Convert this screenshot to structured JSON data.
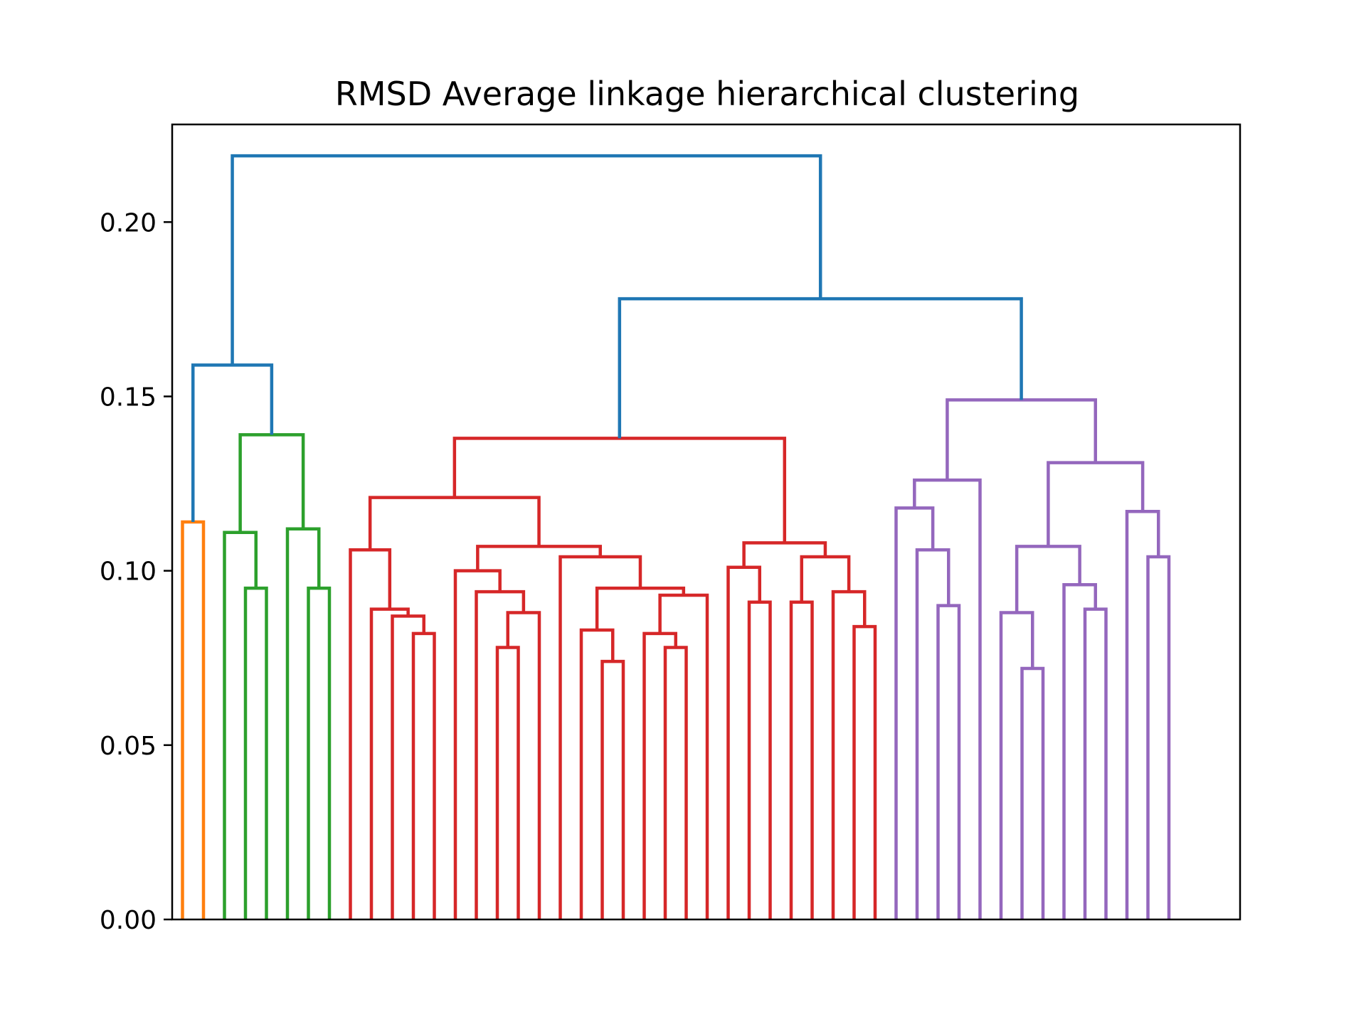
{
  "chart_data": {
    "type": "dendrogram",
    "title": "RMSD Average linkage hierarchical clustering",
    "xlabel": "",
    "ylabel": "",
    "ylim": [
      0.0,
      0.228
    ],
    "yticks": [
      0.0,
      0.05,
      0.1,
      0.15,
      0.2
    ],
    "ytick_labels": [
      "0.00",
      "0.05",
      "0.10",
      "0.15",
      "0.20"
    ],
    "x_tick_labels": "none",
    "grid": false,
    "leaf_count": 50,
    "colors": {
      "orange": "#ff7f0e",
      "green": "#2ca02c",
      "red": "#d62728",
      "purple": "#9467bd",
      "above_threshold": "#1f77b4"
    },
    "merges": [
      {
        "id": "o1",
        "left": "L0",
        "right": "L1",
        "height": 0.114,
        "color": "orange"
      },
      {
        "id": "g1",
        "left": "L3",
        "right": "L4",
        "height": 0.095,
        "color": "green"
      },
      {
        "id": "g2",
        "left": "L2",
        "right": "g1",
        "height": 0.111,
        "color": "green"
      },
      {
        "id": "g3",
        "left": "L6",
        "right": "L7",
        "height": 0.095,
        "color": "green"
      },
      {
        "id": "g4",
        "left": "L5",
        "right": "g3",
        "height": 0.112,
        "color": "green"
      },
      {
        "id": "g5",
        "left": "g2",
        "right": "g4",
        "height": 0.139,
        "color": "green"
      },
      {
        "id": "r1",
        "left": "L11",
        "right": "L12",
        "height": 0.082,
        "color": "red"
      },
      {
        "id": "r2",
        "left": "L10",
        "right": "r1",
        "height": 0.087,
        "color": "red"
      },
      {
        "id": "r3",
        "left": "L9",
        "right": "r2",
        "height": 0.089,
        "color": "red"
      },
      {
        "id": "r4",
        "left": "L8",
        "right": "r3",
        "height": 0.106,
        "color": "red"
      },
      {
        "id": "r5",
        "left": "L15",
        "right": "L16",
        "height": 0.078,
        "color": "red"
      },
      {
        "id": "r6",
        "left": "r5",
        "right": "L17",
        "height": 0.088,
        "color": "red"
      },
      {
        "id": "r7",
        "left": "L14",
        "right": "r6",
        "height": 0.094,
        "color": "red"
      },
      {
        "id": "r8",
        "left": "L13",
        "right": "r7",
        "height": 0.1,
        "color": "red"
      },
      {
        "id": "r9",
        "left": "L20",
        "right": "L21",
        "height": 0.074,
        "color": "red"
      },
      {
        "id": "r10",
        "left": "L19",
        "right": "r9",
        "height": 0.083,
        "color": "red"
      },
      {
        "id": "r11",
        "left": "L23",
        "right": "L24",
        "height": 0.078,
        "color": "red"
      },
      {
        "id": "r12",
        "left": "L22",
        "right": "r11",
        "height": 0.082,
        "color": "red"
      },
      {
        "id": "r13",
        "left": "r12",
        "right": "L25",
        "height": 0.093,
        "color": "red"
      },
      {
        "id": "r14",
        "left": "r10",
        "right": "r13",
        "height": 0.095,
        "color": "red"
      },
      {
        "id": "r15",
        "left": "L18",
        "right": "r14",
        "height": 0.104,
        "color": "red"
      },
      {
        "id": "r16",
        "left": "r8",
        "right": "r15",
        "height": 0.107,
        "color": "red"
      },
      {
        "id": "r17",
        "left": "r4",
        "right": "r16",
        "height": 0.121,
        "color": "red"
      },
      {
        "id": "r18",
        "left": "L27",
        "right": "L28",
        "height": 0.091,
        "color": "red"
      },
      {
        "id": "r19",
        "left": "L26",
        "right": "r18",
        "height": 0.101,
        "color": "red"
      },
      {
        "id": "r20",
        "left": "L29",
        "right": "L30",
        "height": 0.091,
        "color": "red"
      },
      {
        "id": "r21",
        "left": "L32",
        "right": "L33",
        "height": 0.084,
        "color": "red"
      },
      {
        "id": "r22",
        "left": "L31",
        "right": "r21",
        "height": 0.094,
        "color": "red"
      },
      {
        "id": "r23",
        "left": "r20",
        "right": "r22",
        "height": 0.104,
        "color": "red"
      },
      {
        "id": "r24",
        "left": "r19",
        "right": "r23",
        "height": 0.108,
        "color": "red"
      },
      {
        "id": "r25",
        "left": "r24",
        "right": "",
        "height": 0.125,
        "color": "red",
        "note": "placeholder"
      },
      {
        "id": "p1",
        "left": "L36",
        "right": "L37",
        "height": 0.09,
        "color": "purple"
      },
      {
        "id": "p2",
        "left": "L35",
        "right": "p1",
        "height": 0.106,
        "color": "purple"
      },
      {
        "id": "p3",
        "left": "L34",
        "right": "p2",
        "height": 0.118,
        "color": "purple"
      },
      {
        "id": "p4",
        "left": "L38",
        "right": "p3",
        "height": 0.126,
        "color": "purple"
      },
      {
        "id": "p5",
        "left": "L40",
        "right": "L41",
        "height": 0.072,
        "color": "purple"
      },
      {
        "id": "p6",
        "left": "L39",
        "right": "p5",
        "height": 0.088,
        "color": "purple"
      },
      {
        "id": "p7",
        "left": "L43",
        "right": "L44",
        "height": 0.089,
        "color": "purple"
      },
      {
        "id": "p8",
        "left": "L42",
        "right": "p7",
        "height": 0.096,
        "color": "purple"
      },
      {
        "id": "p9",
        "left": "p6",
        "right": "p8",
        "height": 0.107,
        "color": "purple"
      },
      {
        "id": "p10",
        "left": "L46",
        "right": "L47",
        "height": 0.104,
        "color": "purple"
      },
      {
        "id": "p11",
        "left": "L45",
        "right": "p10",
        "height": 0.117,
        "color": "purple"
      },
      {
        "id": "p12",
        "left": "p9",
        "right": "p11",
        "height": 0.131,
        "color": "purple"
      },
      {
        "id": "p13",
        "left": "p4",
        "right": "p12",
        "height": 0.149,
        "color": "purple"
      }
    ]
  }
}
